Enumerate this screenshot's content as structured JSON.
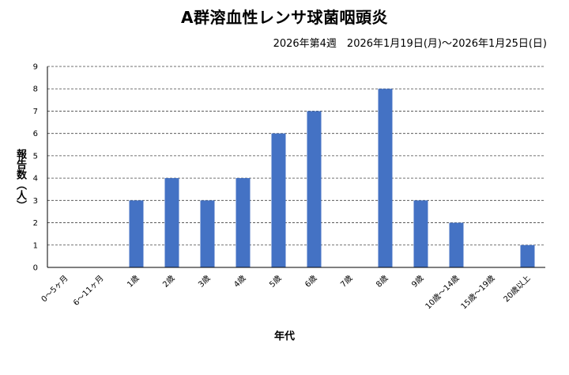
{
  "chart_data": {
    "type": "bar",
    "title": "A群溶血性レンサ球菌咽頭炎",
    "subtitle": "2026年第4週　2026年1月19日(月)〜2026年1月25日(日)",
    "xlabel": "年代",
    "ylabel": "報告数（人）",
    "ylim": [
      0,
      9
    ],
    "yticks": [
      0,
      1,
      2,
      3,
      4,
      5,
      6,
      7,
      8,
      9
    ],
    "grid": true,
    "categories": [
      "0〜5ヶ月",
      "6〜11ヶ月",
      "1歳",
      "2歳",
      "3歳",
      "4歳",
      "5歳",
      "6歳",
      "7歳",
      "8歳",
      "9歳",
      "10歳〜14歳",
      "15歳〜19歳",
      "20歳以上"
    ],
    "values": [
      0,
      0,
      3,
      4,
      3,
      4,
      6,
      7,
      0,
      8,
      3,
      2,
      0,
      1
    ],
    "bar_color": "#4472C4"
  }
}
